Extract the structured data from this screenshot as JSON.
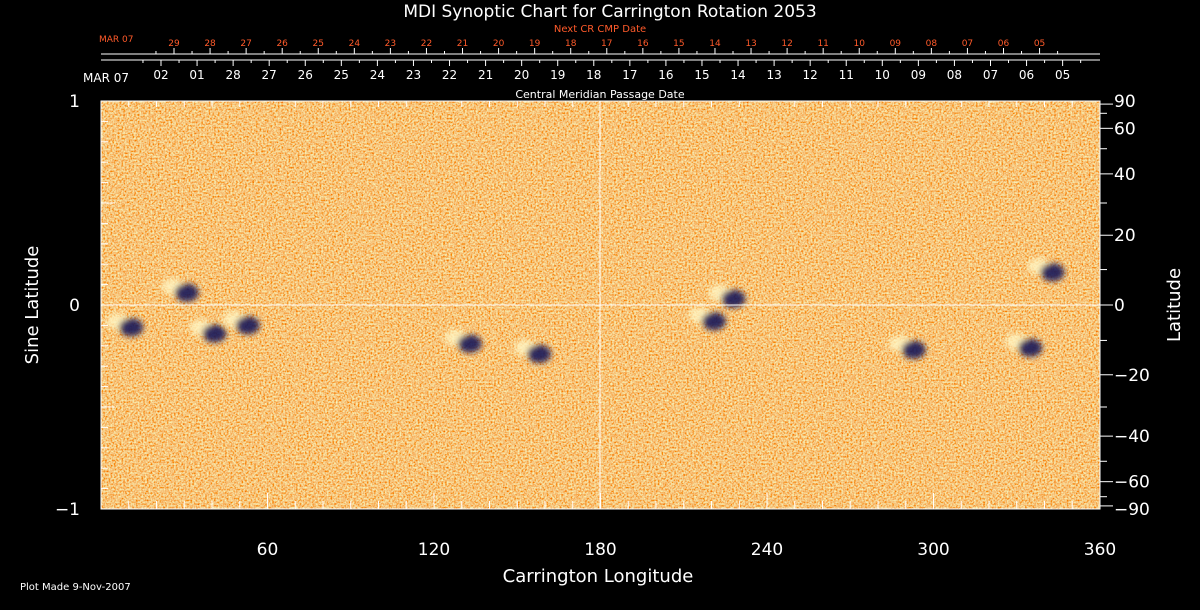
{
  "chart_data": {
    "type": "heatmap",
    "title": "MDI Synoptic Chart for Carrington Rotation 2053",
    "xlabel": "Carrington Longitude",
    "ylabel_left": "Sine Latitude",
    "ylabel_right": "Latitude",
    "xlim": [
      0,
      360
    ],
    "ylim": [
      -1,
      1
    ],
    "x_ticks": [
      60,
      120,
      180,
      240,
      300,
      360
    ],
    "y_ticks_left": [
      {
        "value": 1,
        "label": "1"
      },
      {
        "value": 0,
        "label": "0"
      },
      {
        "value": -1,
        "label": "−1"
      }
    ],
    "y_ticks_right": [
      {
        "deg": 90,
        "label": "90"
      },
      {
        "deg": 60,
        "label": "60"
      },
      {
        "deg": 40,
        "label": "40"
      },
      {
        "deg": 20,
        "label": "20"
      },
      {
        "deg": 0,
        "label": "0"
      },
      {
        "deg": -20,
        "label": "−20"
      },
      {
        "deg": -40,
        "label": "−40"
      },
      {
        "deg": -60,
        "label": "−60"
      },
      {
        "deg": -90,
        "label": "−90"
      }
    ],
    "cmp_axis": {
      "label": "Central Meridian Passage Date",
      "start_label": "MAR 07",
      "dates": [
        "02",
        "01",
        "28",
        "27",
        "26",
        "25",
        "24",
        "23",
        "22",
        "21",
        "20",
        "19",
        "18",
        "17",
        "16",
        "15",
        "14",
        "13",
        "12",
        "11",
        "10",
        "09",
        "08",
        "07",
        "06",
        "05"
      ]
    },
    "next_cmp_axis": {
      "label": "Next CR CMP Date",
      "start_label": "MAR 07",
      "dates": [
        "29",
        "28",
        "27",
        "26",
        "25",
        "24",
        "23",
        "22",
        "21",
        "20",
        "19",
        "18",
        "17",
        "16",
        "15",
        "14",
        "13",
        "12",
        "11",
        "10",
        "09",
        "08",
        "07",
        "06",
        "05"
      ]
    },
    "active_regions": [
      {
        "lon": 8,
        "sinlat": -0.09
      },
      {
        "lon": 28,
        "sinlat": 0.08
      },
      {
        "lon": 38,
        "sinlat": -0.12
      },
      {
        "lon": 50,
        "sinlat": -0.08
      },
      {
        "lon": 130,
        "sinlat": -0.17
      },
      {
        "lon": 155,
        "sinlat": -0.22
      },
      {
        "lon": 225,
        "sinlat": 0.05
      },
      {
        "lon": 218,
        "sinlat": -0.06
      },
      {
        "lon": 290,
        "sinlat": -0.2
      },
      {
        "lon": 332,
        "sinlat": -0.19
      },
      {
        "lon": 340,
        "sinlat": 0.18
      }
    ],
    "grid": "crosshair at lon 180, sin lat 0",
    "colors": {
      "background": "#000000",
      "map_base": "#e8501a",
      "positive": "#fff3c0",
      "negative": "#1a1a5a",
      "accent_text": "#ff5a2a"
    }
  },
  "footer": {
    "plot_made": "Plot Made  9-Nov-2007"
  }
}
